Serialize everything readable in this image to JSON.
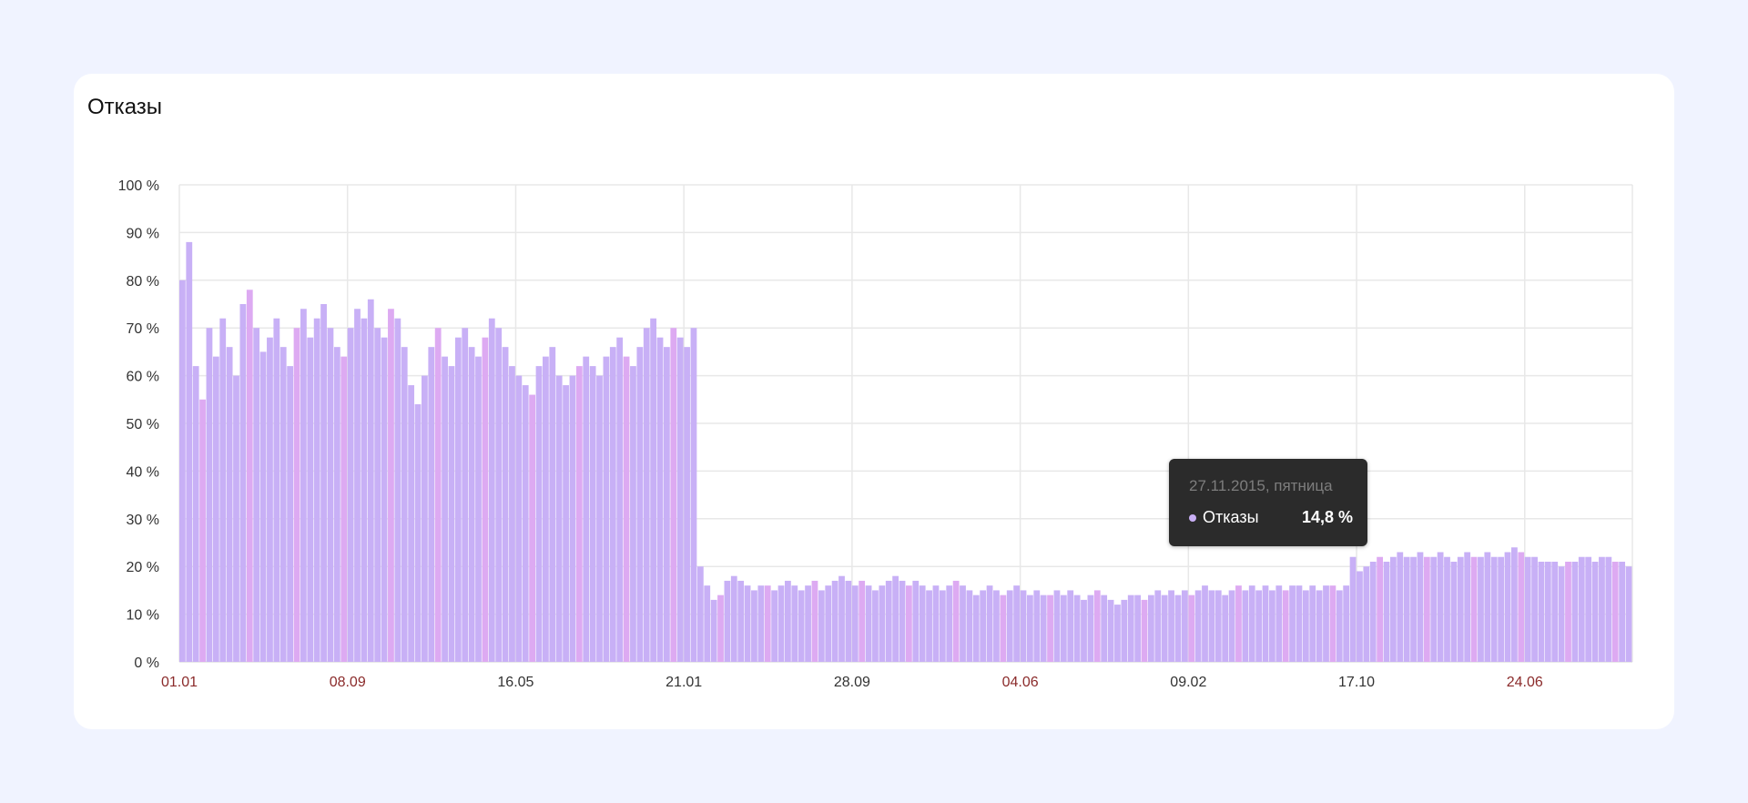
{
  "card": {
    "title": "Отказы"
  },
  "tooltip": {
    "date": "27.11.2015, пятница",
    "series": "Отказы",
    "value": "14,8 %"
  },
  "colors": {
    "bar": "#c8b0f6",
    "bar_alt": "#ddaaf2",
    "grid": "#e8e8e8",
    "weekend_tick": "#8b2b2b",
    "tick": "#333333",
    "background": "#f0f3ff"
  },
  "chart_data": {
    "type": "bar",
    "title": "Отказы",
    "xlabel": "",
    "ylabel": "",
    "ylim": [
      0,
      100
    ],
    "grid": true,
    "yticks": [
      "0 %",
      "10 %",
      "20 %",
      "30 %",
      "40 %",
      "50 %",
      "60 %",
      "70 %",
      "80 %",
      "90 %",
      "100 %"
    ],
    "xticks": [
      {
        "label": "01.01",
        "weekend": true
      },
      {
        "label": "08.09",
        "weekend": true
      },
      {
        "label": "16.05",
        "weekend": false
      },
      {
        "label": "21.01",
        "weekend": false
      },
      {
        "label": "28.09",
        "weekend": false
      },
      {
        "label": "04.06",
        "weekend": true
      },
      {
        "label": "09.02",
        "weekend": false
      },
      {
        "label": "17.10",
        "weekend": false
      },
      {
        "label": "24.06",
        "weekend": true
      }
    ],
    "series": [
      {
        "name": "Отказы",
        "values": [
          80,
          88,
          62,
          55,
          70,
          64,
          72,
          66,
          60,
          75,
          78,
          70,
          65,
          68,
          72,
          66,
          62,
          70,
          74,
          68,
          72,
          75,
          70,
          66,
          64,
          70,
          74,
          72,
          76,
          70,
          68,
          74,
          72,
          66,
          58,
          54,
          60,
          66,
          70,
          64,
          62,
          68,
          70,
          66,
          64,
          68,
          72,
          70,
          66,
          62,
          60,
          58,
          56,
          62,
          64,
          66,
          60,
          58,
          60,
          62,
          64,
          62,
          60,
          64,
          66,
          68,
          64,
          62,
          66,
          70,
          72,
          68,
          66,
          70,
          68,
          66,
          70,
          20,
          16,
          13,
          14,
          17,
          18,
          17,
          16,
          15,
          16,
          16,
          15,
          16,
          17,
          16,
          15,
          16,
          17,
          15,
          16,
          17,
          18,
          17,
          16,
          17,
          16,
          15,
          16,
          17,
          18,
          17,
          16,
          17,
          16,
          15,
          16,
          15,
          16,
          17,
          16,
          15,
          14,
          15,
          16,
          15,
          14,
          15,
          16,
          15,
          14,
          15,
          14,
          14,
          15,
          14,
          15,
          14,
          13,
          14,
          15,
          14,
          13,
          12,
          13,
          14,
          14,
          13,
          14,
          15,
          14,
          15,
          14,
          15,
          14,
          15,
          16,
          15,
          15,
          14,
          15,
          16,
          15,
          16,
          15,
          16,
          15,
          16,
          15,
          16,
          16,
          15,
          16,
          15,
          16,
          16,
          15,
          16,
          22,
          19,
          20,
          21,
          22,
          21,
          22,
          23,
          22,
          22,
          23,
          22,
          22,
          23,
          22,
          21,
          22,
          23,
          22,
          22,
          23,
          22,
          22,
          23,
          24,
          23,
          22,
          22,
          21,
          21,
          21,
          20,
          21,
          21,
          22,
          22,
          21,
          22,
          22,
          21,
          21,
          20
        ]
      }
    ],
    "hover": {
      "date": "27.11.2015",
      "value": 14.8
    }
  }
}
